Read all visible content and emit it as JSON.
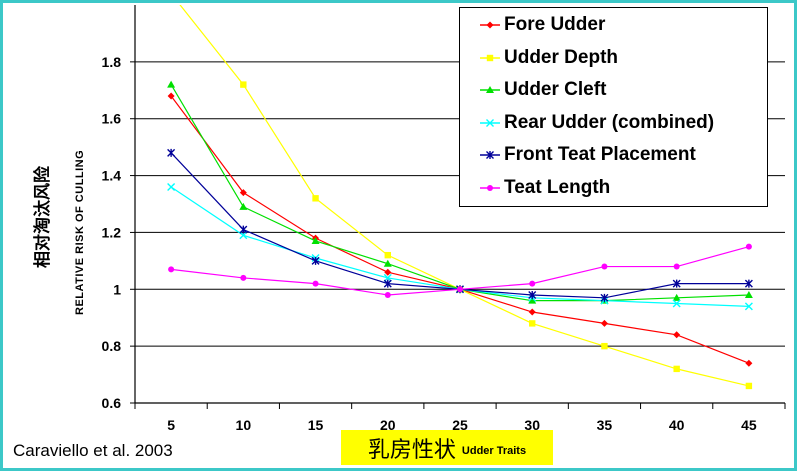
{
  "chart_data": {
    "type": "line",
    "xlabel_cn": "乳房性状",
    "xlabel_en": "Udder Traits",
    "ylabel_cn": "相对淘汰风险",
    "ylabel_en": "RELATIVE RISK OF CULLING",
    "x": [
      5,
      10,
      15,
      20,
      25,
      30,
      35,
      40,
      45
    ],
    "x_tick_labels": [
      "5",
      "10",
      "15",
      "20",
      "25",
      "30",
      "35",
      "40",
      "45"
    ],
    "y_ticks": [
      0.6,
      0.8,
      1,
      1.2,
      1.4,
      1.6,
      1.8
    ],
    "y_tick_labels": [
      "0.6",
      "0.8",
      "1",
      "1.2",
      "1.4",
      "1.6",
      "1.8"
    ],
    "ylim": [
      0.6,
      2.0
    ],
    "xlim": [
      2.5,
      47.5
    ],
    "grid": "horizontal",
    "legend_position": "top-right",
    "series": [
      {
        "name": "Fore Udder",
        "color": "#ff0000",
        "marker": "diamond",
        "values": [
          1.68,
          1.34,
          1.18,
          1.06,
          1.0,
          0.92,
          0.88,
          0.84,
          0.74
        ]
      },
      {
        "name": "Udder Depth",
        "color": "#ffff00",
        "marker": "square",
        "values": [
          2.04,
          1.72,
          1.32,
          1.12,
          1.0,
          0.88,
          0.8,
          0.72,
          0.66
        ]
      },
      {
        "name": "Udder Cleft",
        "color": "#00e000",
        "marker": "triangle",
        "values": [
          1.72,
          1.29,
          1.17,
          1.09,
          1.0,
          0.96,
          0.96,
          0.97,
          0.98
        ]
      },
      {
        "name": "Rear Udder (combined)",
        "color": "#00ffff",
        "marker": "x",
        "values": [
          1.36,
          1.19,
          1.11,
          1.04,
          1.0,
          0.97,
          0.96,
          0.95,
          0.94
        ]
      },
      {
        "name": "Front Teat Placement",
        "color": "#000099",
        "marker": "star",
        "values": [
          1.48,
          1.21,
          1.1,
          1.02,
          1.0,
          0.98,
          0.97,
          1.02,
          1.02
        ]
      },
      {
        "name": "Teat Length",
        "color": "#ff00ff",
        "marker": "circle",
        "values": [
          1.07,
          1.04,
          1.02,
          0.98,
          1.0,
          1.02,
          1.08,
          1.08,
          1.15
        ]
      }
    ]
  },
  "citation": "Caraviello et al. 2003"
}
